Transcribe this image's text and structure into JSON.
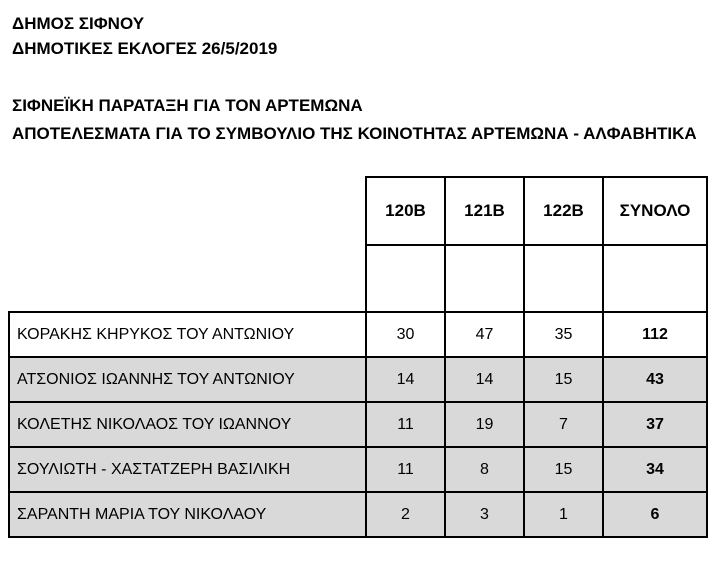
{
  "document": {
    "header": {
      "line1": "ΔΗΜΟΣ ΣΙΦΝΟΥ",
      "line2": "ΔΗΜΟΤΙΚΕΣ ΕΚΛΟΓΕΣ 26/5/2019"
    },
    "subheader": {
      "line1": "ΣΙΦΝΕΪΚΗ ΠΑΡΑΤΑΞΗ ΓΙΑ ΤΟΝ ΑΡΤΕΜΩΝΑ",
      "line2": "ΑΠΟΤΕΛΕΣΜΑΤΑ ΓΙΑ ΤΟ ΣΥΜΒΟΥΛΙΟ ΤΗΣ ΚΟΙΝΟΤΗΤΑΣ ΑΡΤΕΜΩΝΑ - ΑΛΦΑΒΗΤΙΚΑ"
    }
  },
  "results_table": {
    "columns": [
      "120Β",
      "121Β",
      "122Β",
      "ΣΥΝΟΛΟ"
    ],
    "rows": [
      {
        "name": "ΚΟΡΑΚΗΣ ΚΗΡΥΚΟΣ ΤΟΥ ΑΝΤΩΝΙΟΥ",
        "votes": [
          30,
          47,
          35
        ],
        "total": 112
      },
      {
        "name": "ΑΤΣΟΝΙΟΣ ΙΩΑΝΝΗΣ ΤΟΥ ΑΝΤΩΝΙΟΥ",
        "votes": [
          14,
          14,
          15
        ],
        "total": 43
      },
      {
        "name": "ΚΟΛΕΤΗΣ ΝΙΚΟΛΑΟΣ ΤΟΥ ΙΩΑΝΝΟΥ",
        "votes": [
          11,
          19,
          7
        ],
        "total": 37
      },
      {
        "name": "ΣΟΥΛΙΩΤΗ - ΧΑΣΤΑΤΖΕΡΗ ΒΑΣΙΛΙΚΗ",
        "votes": [
          11,
          8,
          15
        ],
        "total": 34
      },
      {
        "name": "ΣΑΡΑΝΤΗ ΜΑΡΙΑ ΤΟΥ ΝΙΚΟΛΑΟΥ",
        "votes": [
          2,
          3,
          1
        ],
        "total": 6
      }
    ]
  },
  "colors": {
    "row_stripe": "#d9d9d9",
    "border": "#000000",
    "text": "#000000",
    "background": "#ffffff"
  }
}
